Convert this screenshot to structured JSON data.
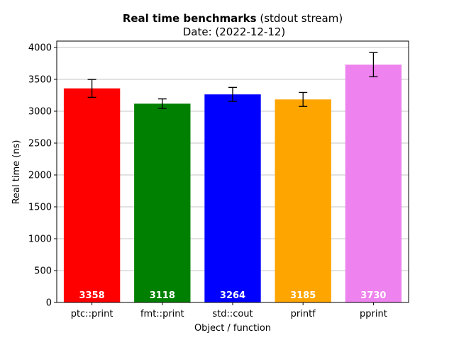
{
  "chart_data": {
    "type": "bar",
    "title_bold": "Real time benchmarks",
    "title_rest": " (stdout stream)",
    "subtitle": "Date: (2022-12-12)",
    "xlabel": "Object / function",
    "ylabel": "Real time (ns)",
    "ylim": [
      0,
      4100
    ],
    "yticks": [
      0,
      500,
      1000,
      1500,
      2000,
      2500,
      3000,
      3500,
      4000
    ],
    "grid": "y",
    "categories": [
      "ptc::print",
      "fmt::print",
      "std::cout",
      "printf",
      "pprint"
    ],
    "values": [
      3358,
      3118,
      3264,
      3185,
      3730
    ],
    "value_labels": [
      "3358",
      "3118",
      "3264",
      "3185",
      "3730"
    ],
    "errors": [
      140,
      75,
      110,
      110,
      190
    ],
    "colors": [
      "#ff0000",
      "#008000",
      "#0000ff",
      "#ffa500",
      "#ee82ee"
    ]
  }
}
